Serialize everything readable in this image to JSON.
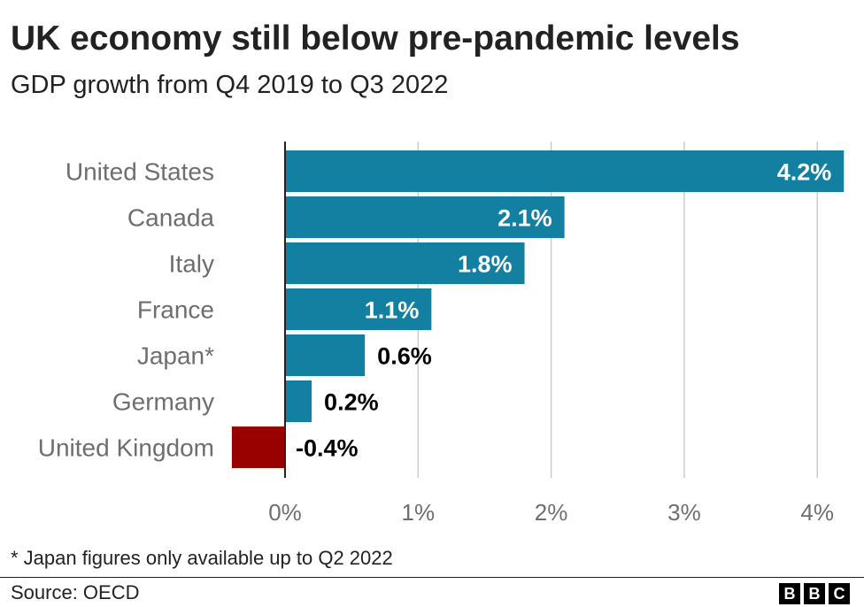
{
  "title": "UK economy still below pre-pandemic levels",
  "subtitle": "GDP growth from Q4 2019 to Q3 2022",
  "footnote": "* Japan figures only available up to Q2 2022",
  "source": "Source: OECD",
  "logo": [
    "B",
    "B",
    "C"
  ],
  "chart_data": {
    "type": "bar",
    "orientation": "horizontal",
    "categories": [
      "United States",
      "Canada",
      "Italy",
      "France",
      "Japan*",
      "Germany",
      "United Kingdom"
    ],
    "values": [
      4.2,
      2.1,
      1.8,
      1.1,
      0.6,
      0.2,
      -0.4
    ],
    "data_labels": [
      "4.2%",
      "2.1%",
      "1.8%",
      "1.1%",
      "0.6%",
      "0.2%",
      "-0.4%"
    ],
    "xticks": [
      0,
      1,
      2,
      3,
      4
    ],
    "xtick_labels": [
      "0%",
      "1%",
      "2%",
      "3%",
      "4%"
    ],
    "xlim": [
      -0.4,
      4.2
    ],
    "grid": true,
    "colors": {
      "positive": "#1380a1",
      "negative": "#990000"
    }
  }
}
